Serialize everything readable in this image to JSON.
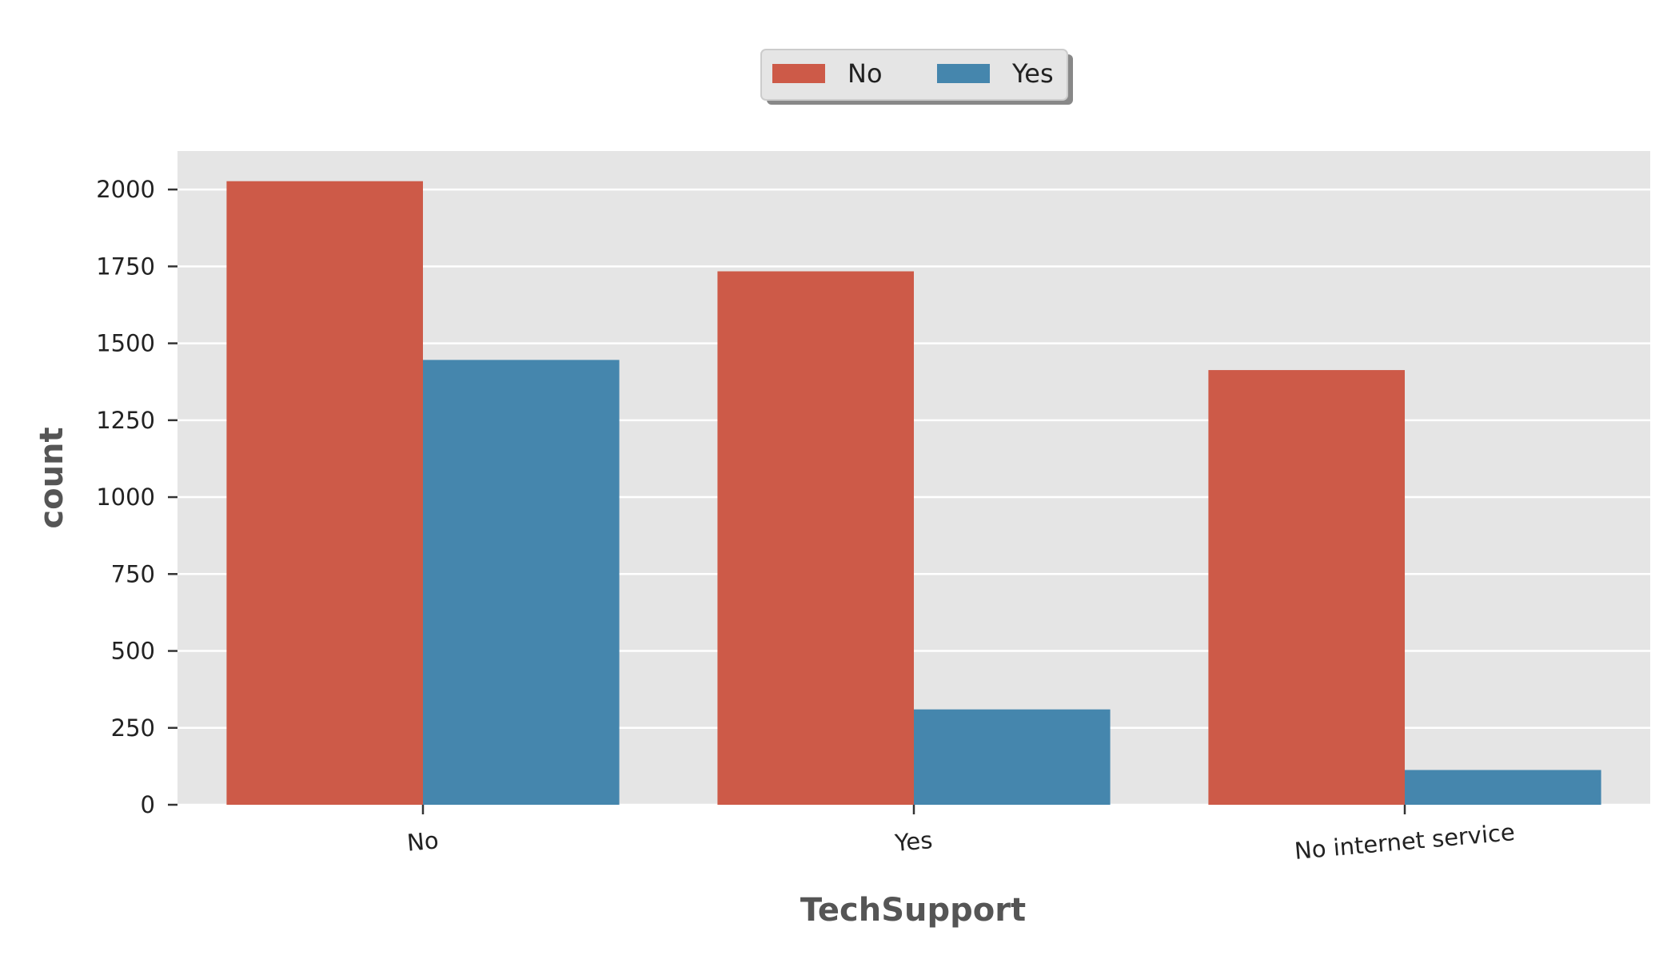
{
  "chart_data": {
    "type": "bar",
    "categories": [
      "No",
      "Yes",
      "No internet service"
    ],
    "series": [
      {
        "name": "No",
        "values": [
          2027,
          1734,
          1413
        ],
        "color": "#cd5a48"
      },
      {
        "name": "Yes",
        "values": [
          1446,
          310,
          113
        ],
        "color": "#4586ad"
      }
    ],
    "xlabel": "TechSupport",
    "ylabel": "count",
    "ylim": [
      0,
      2125
    ],
    "yticks": [
      0,
      250,
      500,
      750,
      1000,
      1250,
      1500,
      1750,
      2000
    ],
    "grid": true,
    "legend_position": "top-center",
    "background": "#e5e5e5"
  }
}
